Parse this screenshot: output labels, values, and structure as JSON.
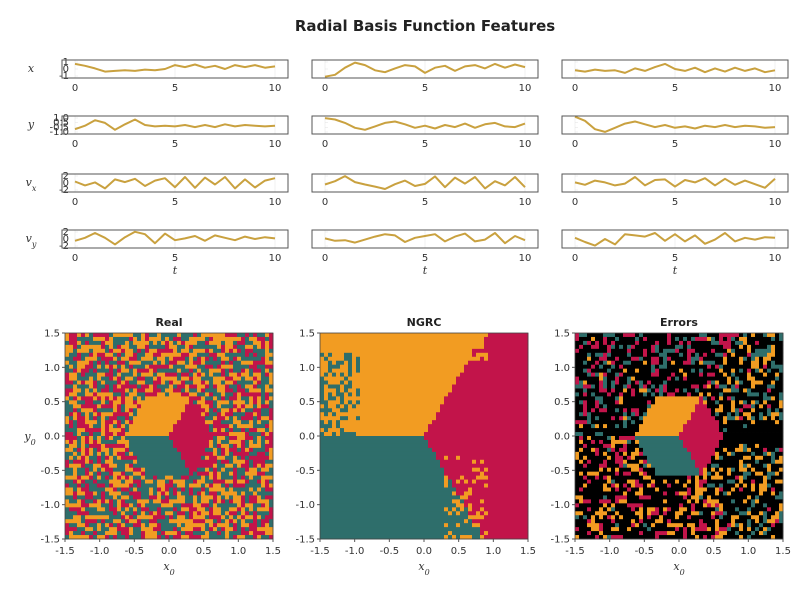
{
  "figure": {
    "title": "Radial Basis Function Features"
  },
  "colors": {
    "trace": "#c9a13f",
    "orange": "#f29c22",
    "red": "#c2144a",
    "teal": "#2e6e6b",
    "black": "#000000"
  },
  "chart_data": [
    {
      "type": "line",
      "panel": "timeseries-grid",
      "xlabel": "t",
      "xlim": [
        0,
        10
      ],
      "xticks": [
        "0",
        "5",
        "10"
      ],
      "rows": [
        {
          "ylabel": "x",
          "ylabel_sub": "",
          "yticks": [
            "1",
            "0",
            "-1"
          ],
          "ylim": [
            -1.4,
            1.4
          ],
          "series": [
            {
              "x": [
                0,
                0.5,
                1,
                1.5,
                2,
                2.5,
                3,
                3.5,
                4,
                4.5,
                5,
                5.5,
                6,
                6.5,
                7,
                7.5,
                8,
                8.5,
                9,
                9.5,
                10
              ],
              "y": [
                0.8,
                0.5,
                0.1,
                -0.4,
                -0.3,
                -0.2,
                -0.3,
                -0.1,
                -0.2,
                0.0,
                0.6,
                0.3,
                0.7,
                0.2,
                0.5,
                0.0,
                0.6,
                0.3,
                0.6,
                0.2,
                0.4
              ]
            },
            {
              "x": [
                0,
                0.5,
                1,
                1.5,
                2,
                2.5,
                3,
                3.5,
                4,
                4.5,
                5,
                5.5,
                6,
                6.5,
                7,
                7.5,
                8,
                8.5,
                9,
                9.5,
                10
              ],
              "y": [
                -1.2,
                -0.9,
                0.2,
                1.0,
                0.6,
                -0.2,
                -0.5,
                0.1,
                0.6,
                0.4,
                -0.6,
                0.2,
                0.5,
                -0.3,
                0.4,
                0.6,
                0.1,
                0.8,
                0.2,
                0.7,
                0.3
              ]
            },
            {
              "x": [
                0,
                0.5,
                1,
                1.5,
                2,
                2.5,
                3,
                3.5,
                4,
                4.5,
                5,
                5.5,
                6,
                6.5,
                7,
                7.5,
                8,
                8.5,
                9,
                9.5,
                10
              ],
              "y": [
                -0.2,
                -0.4,
                -0.1,
                -0.3,
                -0.2,
                -0.6,
                0.1,
                -0.3,
                0.3,
                0.8,
                0.0,
                -0.3,
                0.2,
                -0.5,
                0.1,
                -0.4,
                0.2,
                -0.3,
                0.1,
                -0.5,
                -0.2
              ]
            }
          ]
        },
        {
          "ylabel": "y",
          "ylabel_sub": "",
          "yticks": [
            "1.0",
            "0.5",
            "-0.5",
            "-1.0"
          ],
          "ylim": [
            -1.3,
            1.3
          ],
          "series": [
            {
              "x": [
                0,
                0.5,
                1,
                1.5,
                2,
                2.5,
                3,
                3.5,
                4,
                4.5,
                5,
                5.5,
                6,
                6.5,
                7,
                7.5,
                8,
                8.5,
                9,
                9.5,
                10
              ],
              "y": [
                -0.6,
                -0.1,
                0.7,
                0.3,
                -0.7,
                0.1,
                0.8,
                0.0,
                -0.2,
                -0.1,
                -0.2,
                0.0,
                -0.3,
                0.0,
                -0.3,
                0.1,
                -0.2,
                0.0,
                -0.1,
                -0.2,
                -0.1
              ]
            },
            {
              "x": [
                0,
                0.5,
                1,
                1.5,
                2,
                2.5,
                3,
                3.5,
                4,
                4.5,
                5,
                5.5,
                6,
                6.5,
                7,
                7.5,
                8,
                8.5,
                9,
                9.5,
                10
              ],
              "y": [
                1.0,
                0.8,
                0.3,
                -0.4,
                -0.7,
                -0.2,
                0.3,
                0.5,
                0.1,
                -0.4,
                -0.1,
                -0.5,
                0.0,
                -0.3,
                0.2,
                -0.4,
                0.1,
                0.3,
                -0.2,
                -0.3,
                0.2
              ]
            },
            {
              "x": [
                0,
                0.5,
                1,
                1.5,
                2,
                2.5,
                3,
                3.5,
                4,
                4.5,
                5,
                5.5,
                6,
                6.5,
                7,
                7.5,
                8,
                8.5,
                9,
                9.5,
                10
              ],
              "y": [
                1.2,
                0.6,
                -0.6,
                -1.0,
                -0.4,
                0.2,
                0.5,
                0.1,
                -0.3,
                0.0,
                -0.4,
                -0.2,
                -0.5,
                -0.1,
                -0.3,
                0.0,
                -0.3,
                -0.1,
                -0.2,
                -0.4,
                -0.3
              ]
            }
          ]
        },
        {
          "ylabel": "v",
          "ylabel_sub": "x",
          "yticks": [
            "2",
            "0",
            "-2"
          ],
          "ylim": [
            -3,
            3
          ],
          "series": [
            {
              "x": [
                0,
                0.5,
                1,
                1.5,
                2,
                2.5,
                3,
                3.5,
                4,
                4.5,
                5,
                5.5,
                6,
                6.5,
                7,
                7.5,
                8,
                8.5,
                9,
                9.5,
                10
              ],
              "y": [
                0.5,
                -0.8,
                0.2,
                -1.8,
                1.2,
                0.3,
                1.4,
                -1.0,
                0.8,
                1.6,
                -1.4,
                2.0,
                -1.6,
                1.8,
                -0.5,
                2.0,
                -1.8,
                1.2,
                -1.5,
                0.8,
                1.6
              ]
            },
            {
              "x": [
                0,
                0.5,
                1,
                1.5,
                2,
                2.5,
                3,
                3.5,
                4,
                4.5,
                5,
                5.5,
                6,
                6.5,
                7,
                7.5,
                8,
                8.5,
                9,
                9.5,
                10
              ],
              "y": [
                -0.5,
                0.6,
                2.3,
                0.3,
                -0.5,
                -1.2,
                -2.0,
                -0.4,
                0.8,
                -1.0,
                -0.3,
                2.2,
                -1.4,
                1.8,
                -0.2,
                2.0,
                -1.8,
                0.6,
                -0.8,
                2.0,
                -1.4
              ]
            },
            {
              "x": [
                0,
                0.5,
                1,
                1.5,
                2,
                2.5,
                3,
                3.5,
                4,
                4.5,
                5,
                5.5,
                6,
                6.5,
                7,
                7.5,
                8,
                8.5,
                9,
                9.5,
                10
              ],
              "y": [
                0.2,
                -0.6,
                0.8,
                0.2,
                -0.8,
                -0.2,
                2.0,
                -0.8,
                1.0,
                1.2,
                -1.2,
                1.0,
                0.2,
                1.6,
                -0.8,
                1.4,
                -0.6,
                0.8,
                -0.4,
                -1.6,
                1.4
              ]
            }
          ]
        },
        {
          "ylabel": "v",
          "ylabel_sub": "y",
          "yticks": [
            "2",
            "0",
            "-2"
          ],
          "ylim": [
            -3,
            3
          ],
          "series": [
            {
              "x": [
                0,
                0.5,
                1,
                1.5,
                2,
                2.5,
                3,
                3.5,
                4,
                4.5,
                5,
                5.5,
                6,
                6.5,
                7,
                7.5,
                8,
                8.5,
                9,
                9.5,
                10
              ],
              "y": [
                -0.6,
                0.4,
                2.0,
                0.4,
                -1.8,
                0.6,
                2.4,
                1.6,
                -1.4,
                1.8,
                -0.4,
                0.2,
                1.0,
                -0.6,
                1.2,
                0.4,
                -0.4,
                0.8,
                0.0,
                0.6,
                0.2
              ]
            },
            {
              "x": [
                0,
                0.5,
                1,
                1.5,
                2,
                2.5,
                3,
                3.5,
                4,
                4.5,
                5,
                5.5,
                6,
                6.5,
                7,
                7.5,
                8,
                8.5,
                9,
                9.5,
                10
              ],
              "y": [
                0.2,
                -0.6,
                -0.4,
                -1.2,
                -0.2,
                0.8,
                1.6,
                1.2,
                -1.0,
                0.4,
                1.0,
                1.6,
                -0.8,
                0.8,
                1.8,
                -0.8,
                -0.2,
                2.0,
                -1.4,
                1.0,
                -0.4
              ]
            },
            {
              "x": [
                0,
                0.5,
                1,
                1.5,
                2,
                2.5,
                3,
                3.5,
                4,
                4.5,
                5,
                5.5,
                6,
                6.5,
                7,
                7.5,
                8,
                8.5,
                9,
                9.5,
                10
              ],
              "y": [
                0.4,
                -1.0,
                -2.2,
                0.0,
                -1.8,
                1.6,
                1.2,
                0.8,
                2.0,
                -0.6,
                1.6,
                -0.8,
                1.2,
                -1.6,
                -0.2,
                2.0,
                -0.8,
                0.4,
                -0.2,
                0.6,
                0.4
              ]
            }
          ]
        }
      ]
    },
    {
      "type": "heatmap",
      "panel": "basins",
      "xlim": [
        -1.5,
        1.5
      ],
      "ylim": [
        -1.5,
        1.5
      ],
      "xticks": [
        "-1.5",
        "-1.0",
        "-0.5",
        "0.0",
        "0.5",
        "1.0",
        "1.5"
      ],
      "yticks": [
        "1.5",
        "1.0",
        "0.5",
        "0.0",
        "-0.5",
        "-1.0",
        "-1.5"
      ],
      "xlabel": "x",
      "xlabel_sub": "0",
      "ylabel": "y",
      "ylabel_sub": "0",
      "panels": [
        {
          "title": "Real",
          "kind": "real"
        },
        {
          "title": "NGRC",
          "kind": "ngrc"
        },
        {
          "title": "Errors",
          "kind": "errors"
        }
      ]
    }
  ]
}
